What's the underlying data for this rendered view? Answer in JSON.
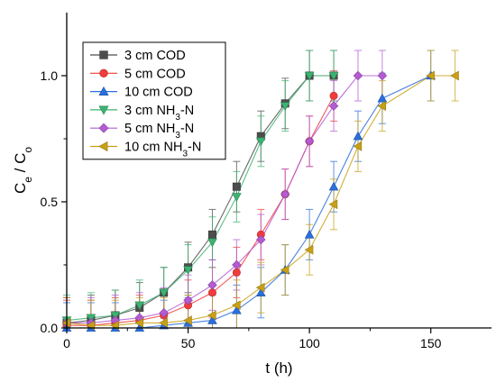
{
  "chart_data": {
    "type": "line",
    "xlabel": "t (h)",
    "ylabel": "Ce / Co",
    "xlim": [
      0,
      175
    ],
    "ylim": [
      0,
      1.25
    ],
    "x_ticks": [
      0,
      50,
      100,
      150
    ],
    "y_ticks": [
      0.0,
      0.5,
      1.0
    ],
    "x_tick_labels": [
      "0",
      "50",
      "100",
      "150"
    ],
    "y_tick_labels": [
      "0.0",
      "0.5",
      "1.0"
    ],
    "grid": false,
    "legend_position": "top-left",
    "series": [
      {
        "name": "3 cm COD",
        "marker": "square",
        "color": "#4d4d4d",
        "x": [
          0,
          10,
          20,
          30,
          40,
          50,
          60,
          70,
          80,
          90,
          100,
          110
        ],
        "y": [
          0.02,
          0.03,
          0.05,
          0.08,
          0.14,
          0.24,
          0.37,
          0.56,
          0.76,
          0.89,
          1.0,
          1.0
        ],
        "err": [
          0.1,
          0.1,
          0.1,
          0.1,
          0.1,
          0.1,
          0.1,
          0.1,
          0.1,
          0.1,
          0.1,
          0.1
        ]
      },
      {
        "name": "5 cm COD",
        "marker": "circle",
        "color": "#f03c3c",
        "x": [
          0,
          10,
          20,
          30,
          40,
          50,
          60,
          70,
          80,
          90,
          100,
          110
        ],
        "y": [
          0.01,
          0.01,
          0.02,
          0.03,
          0.05,
          0.09,
          0.14,
          0.22,
          0.37,
          0.53,
          0.74,
          0.92
        ],
        "err": [
          0.1,
          0.1,
          0.1,
          0.1,
          0.1,
          0.1,
          0.1,
          0.1,
          0.1,
          0.1,
          0.1,
          0.1
        ]
      },
      {
        "name": "10 cm COD",
        "marker": "triangle-up",
        "color": "#2a6fdb",
        "x": [
          0,
          10,
          20,
          30,
          40,
          50,
          60,
          70,
          80,
          90,
          100,
          110,
          120,
          130,
          150
        ],
        "y": [
          0.0,
          0.0,
          0.0,
          0.0,
          0.01,
          0.02,
          0.03,
          0.07,
          0.14,
          0.23,
          0.37,
          0.56,
          0.76,
          0.91,
          1.0
        ],
        "err": [
          0.1,
          0.1,
          0.1,
          0.1,
          0.1,
          0.1,
          0.1,
          0.1,
          0.1,
          0.1,
          0.1,
          0.1,
          0.1,
          0.1,
          0.1
        ]
      },
      {
        "name": "3 cm NH₃-N",
        "marker": "triangle-down",
        "color": "#3cb371",
        "x": [
          0,
          10,
          20,
          30,
          40,
          50,
          60,
          70,
          80,
          90,
          100,
          110
        ],
        "y": [
          0.03,
          0.04,
          0.05,
          0.09,
          0.14,
          0.23,
          0.34,
          0.52,
          0.74,
          0.88,
          1.0,
          1.0
        ],
        "err": [
          0.1,
          0.1,
          0.1,
          0.1,
          0.1,
          0.1,
          0.1,
          0.1,
          0.1,
          0.1,
          0.1,
          0.1
        ]
      },
      {
        "name": "5 cm NH₃-N",
        "marker": "diamond",
        "color": "#b45ad2",
        "x": [
          0,
          10,
          20,
          30,
          40,
          50,
          60,
          70,
          80,
          90,
          100,
          110,
          120,
          130
        ],
        "y": [
          0.02,
          0.02,
          0.03,
          0.04,
          0.06,
          0.11,
          0.17,
          0.25,
          0.35,
          0.53,
          0.74,
          0.88,
          1.0,
          1.0
        ],
        "err": [
          0.1,
          0.1,
          0.1,
          0.1,
          0.1,
          0.1,
          0.1,
          0.1,
          0.1,
          0.1,
          0.1,
          0.1,
          0.1,
          0.1
        ]
      },
      {
        "name": "10 cm NH₃-N",
        "marker": "triangle-left",
        "color": "#c8a015",
        "x": [
          0,
          10,
          20,
          30,
          40,
          50,
          60,
          70,
          80,
          90,
          100,
          110,
          120,
          130,
          150,
          160
        ],
        "y": [
          0.02,
          0.01,
          0.01,
          0.02,
          0.02,
          0.03,
          0.05,
          0.09,
          0.16,
          0.23,
          0.31,
          0.49,
          0.72,
          0.88,
          1.0,
          1.0
        ],
        "err": [
          0.1,
          0.1,
          0.1,
          0.1,
          0.1,
          0.1,
          0.1,
          0.1,
          0.1,
          0.1,
          0.1,
          0.1,
          0.1,
          0.1,
          0.1,
          0.1
        ]
      }
    ]
  }
}
